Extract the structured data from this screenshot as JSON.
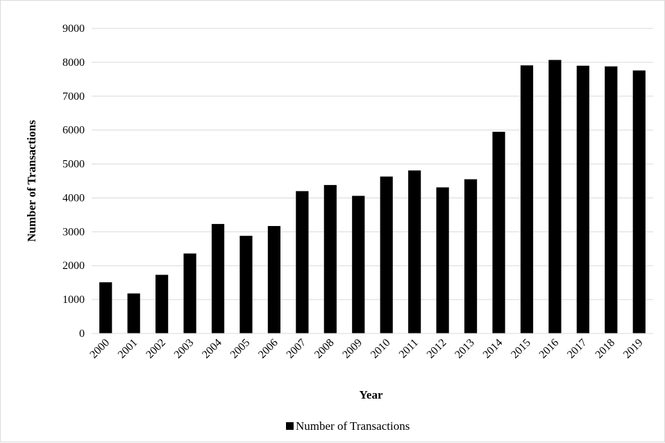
{
  "chart_data": {
    "type": "bar",
    "title": "",
    "xlabel": "Year",
    "ylabel": "Number of Transactions",
    "ylim": [
      0,
      9000
    ],
    "yticks": [
      0,
      1000,
      2000,
      3000,
      4000,
      5000,
      6000,
      7000,
      8000,
      9000
    ],
    "grid": true,
    "legend_position": "bottom",
    "bar_color": "#000000",
    "grid_color": "#d9d9d9",
    "categories": [
      "2000",
      "2001",
      "2002",
      "2003",
      "2004",
      "2005",
      "2006",
      "2007",
      "2008",
      "2009",
      "2010",
      "2011",
      "2012",
      "2013",
      "2014",
      "2015",
      "2016",
      "2017",
      "2018",
      "2019"
    ],
    "series": [
      {
        "name": "Number of Transactions",
        "values": [
          1510,
          1180,
          1730,
          2360,
          3230,
          2880,
          3170,
          4200,
          4380,
          4060,
          4630,
          4810,
          4310,
          4550,
          5950,
          7910,
          8070,
          7900,
          7880,
          7760
        ]
      }
    ]
  }
}
